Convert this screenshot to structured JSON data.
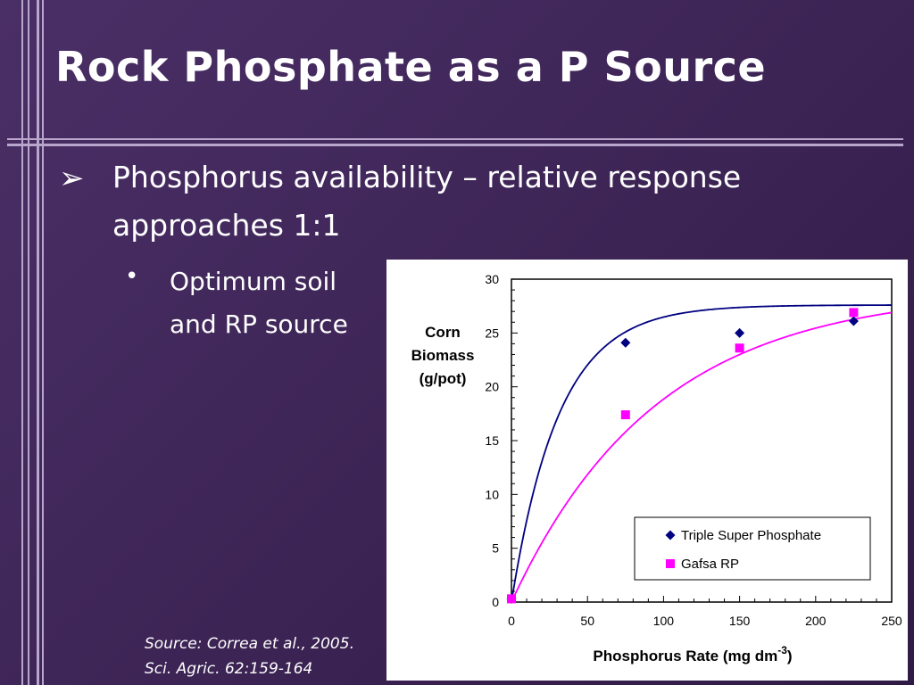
{
  "slide": {
    "title": "Rock Phosphate as a P Source",
    "bullet1": "Phosphorus availability – relative response approaches 1:1",
    "bullet2": "Optimum soil and RP source",
    "source_line1": "Source: Correa et al., 2005.",
    "source_line2": "Sci. Agric. 62:159-164"
  },
  "chart_data": {
    "type": "scatter",
    "ylabel_lines": [
      "Corn",
      "Biomass",
      "(g/pot)"
    ],
    "xlabel": "Phosphorus Rate (mg dm",
    "xlabel_sup": "-3",
    "xlabel_end": ")",
    "xlim": [
      0,
      250
    ],
    "ylim": [
      0,
      30
    ],
    "x_ticks": [
      0,
      50,
      100,
      150,
      200,
      250
    ],
    "y_ticks": [
      0,
      5,
      10,
      15,
      20,
      25,
      30
    ],
    "legend_position": "bottom-right",
    "series": [
      {
        "name": "Triple Super Phosphate",
        "marker": "diamond",
        "color": "#000080",
        "points": [
          [
            0,
            0.3
          ],
          [
            75,
            24.1
          ],
          [
            150,
            25.0
          ],
          [
            225,
            26.1
          ]
        ],
        "fit": {
          "asymptote": 27.6,
          "rate": 0.032
        }
      },
      {
        "name": "Gafsa RP",
        "marker": "square",
        "color": "#ff00ff",
        "points": [
          [
            0,
            0.3
          ],
          [
            75,
            17.4
          ],
          [
            150,
            23.6
          ],
          [
            225,
            26.9
          ]
        ],
        "fit": {
          "asymptote": 29.0,
          "rate": 0.0105
        }
      }
    ]
  }
}
